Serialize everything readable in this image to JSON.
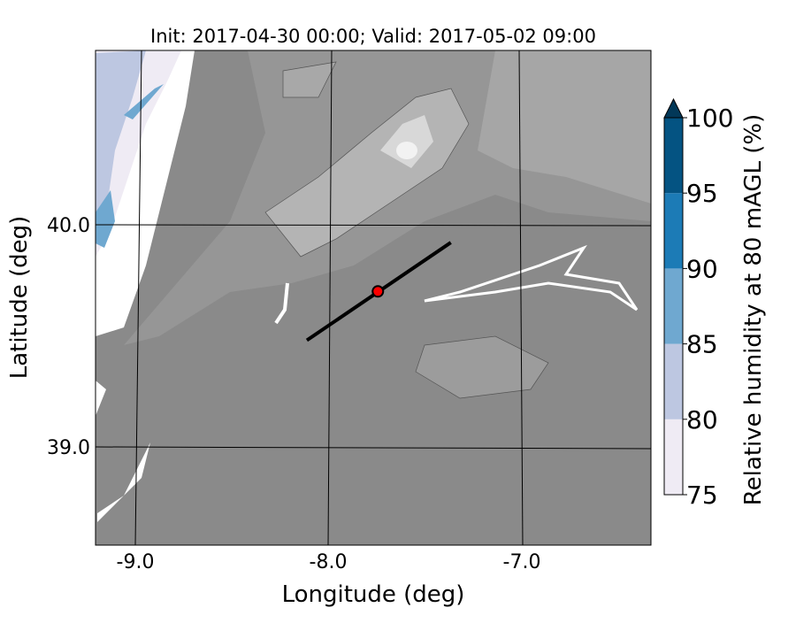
{
  "title": "Init: 2017-04-30 00:00; Valid: 2017-05-02 09:00",
  "xlabel": "Longitude (deg)",
  "ylabel": "Latitude (deg)",
  "x_ticks": [
    {
      "value": -9.0,
      "label": "-9.0"
    },
    {
      "value": -8.0,
      "label": "-8.0"
    },
    {
      "value": -7.0,
      "label": "-7.0"
    }
  ],
  "y_ticks": [
    {
      "value": 40.0,
      "label": "40.0"
    },
    {
      "value": 39.0,
      "label": "39.0"
    }
  ],
  "colorbar": {
    "label": "Relative humidity at 80 mAGL (%)",
    "extend": "max",
    "levels": [
      {
        "from": 75,
        "to": 80,
        "color": "#efebf4"
      },
      {
        "from": 80,
        "to": 85,
        "color": "#bdc7e1"
      },
      {
        "from": 85,
        "to": 90,
        "color": "#6fa8d0"
      },
      {
        "from": 90,
        "to": 95,
        "color": "#1c7bb6"
      },
      {
        "from": 95,
        "to": 100,
        "color": "#045382"
      }
    ],
    "extend_color": "#023858",
    "tick_labels": [
      "75",
      "80",
      "85",
      "90",
      "95",
      "100"
    ]
  },
  "terrain_colors": {
    "low": "#8a8a8a",
    "mid": "#a0a0a0",
    "high": "#c8c8c8",
    "peak": "#efefef"
  },
  "cross_section": {
    "start": {
      "lon": -8.12,
      "lat": 39.48
    },
    "end": {
      "lon": -7.37,
      "lat": 39.92
    },
    "color": "#000000"
  },
  "site_marker": {
    "lon": -7.75,
    "lat": 39.7,
    "color": "#ff0000"
  }
}
